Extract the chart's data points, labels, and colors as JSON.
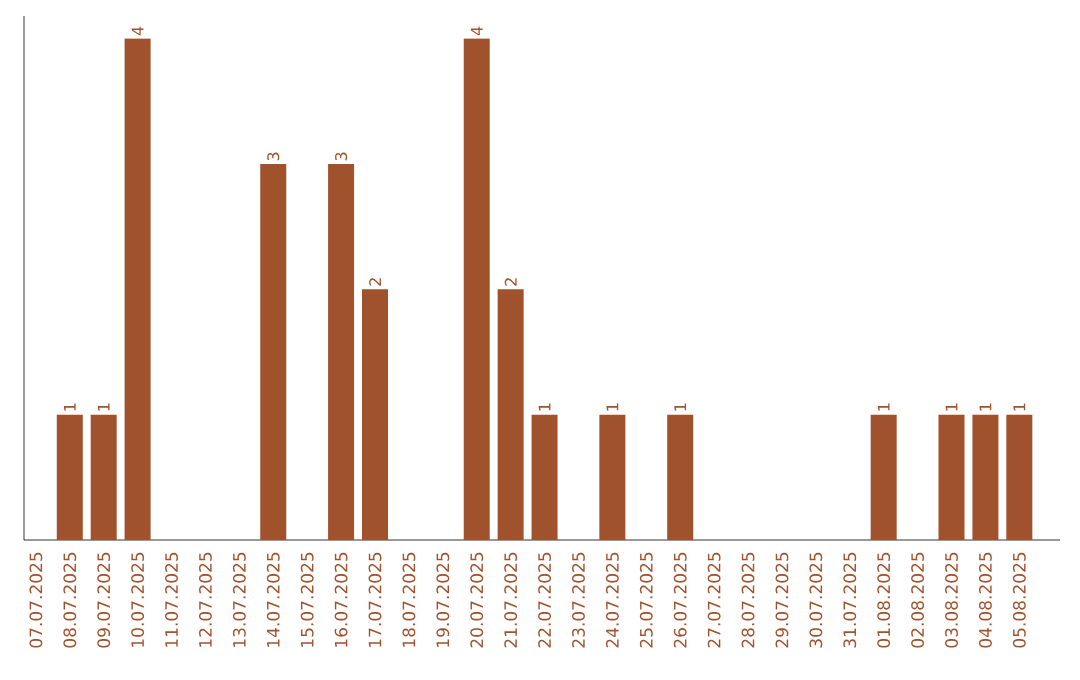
{
  "chart_data": {
    "type": "bar",
    "color": "#a0522d",
    "categories": [
      "07.07.2025",
      "08.07.2025",
      "09.07.2025",
      "10.07.2025",
      "11.07.2025",
      "12.07.2025",
      "13.07.2025",
      "14.07.2025",
      "15.07.2025",
      "16.07.2025",
      "17.07.2025",
      "18.07.2025",
      "19.07.2025",
      "20.07.2025",
      "21.07.2025",
      "22.07.2025",
      "23.07.2025",
      "24.07.2025",
      "25.07.2025",
      "26.07.2025",
      "27.07.2025",
      "28.07.2025",
      "29.07.2025",
      "30.07.2025",
      "31.07.2025",
      "01.08.2025",
      "02.08.2025",
      "03.08.2025",
      "04.08.2025",
      "05.08.2025"
    ],
    "values": [
      0,
      1,
      1,
      4,
      0,
      0,
      0,
      3,
      0,
      3,
      2,
      0,
      0,
      4,
      2,
      1,
      0,
      1,
      0,
      1,
      0,
      0,
      0,
      0,
      0,
      1,
      0,
      1,
      1,
      1
    ],
    "value_labels": [
      null,
      "1",
      "1",
      "4",
      null,
      null,
      null,
      "3",
      null,
      "3",
      "2",
      null,
      null,
      "4",
      "2",
      "1",
      null,
      "1",
      null,
      "1",
      null,
      null,
      null,
      null,
      null,
      "1",
      null,
      "1",
      "1",
      "1"
    ]
  }
}
